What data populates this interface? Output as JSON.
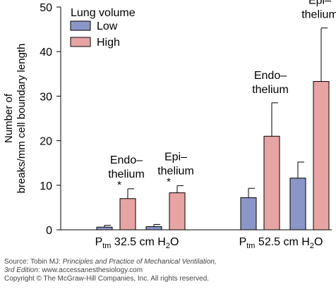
{
  "chart_data": {
    "type": "bar",
    "ylabel_line1": "Number of",
    "ylabel_line2": "breaks/mm cell boundary length",
    "ylim": [
      0,
      50
    ],
    "yticks": [
      0,
      10,
      20,
      30,
      40,
      50
    ],
    "grid": false,
    "legend": {
      "title": "Lung volume",
      "position": "top-left",
      "entries": [
        {
          "name": "Low",
          "color": "#8b96c8"
        },
        {
          "name": "High",
          "color": "#e8a3a3"
        }
      ]
    },
    "groups": [
      {
        "xlabel": {
          "p": "P",
          "sub": "tm",
          "value": "32.5 cm H",
          "sub2": "2",
          "end": "O"
        },
        "subgroups": [
          {
            "annotation": [
              "Endo–",
              "thelium"
            ],
            "star": "*",
            "low": 0.6,
            "low_err": 0.4,
            "high": 7.0,
            "high_err": 2.2
          },
          {
            "annotation": [
              "Epi–",
              "thelium"
            ],
            "star": "*",
            "low": 0.7,
            "low_err": 0.5,
            "high": 8.3,
            "high_err": 1.6
          }
        ]
      },
      {
        "xlabel": {
          "p": "P",
          "sub": "tm",
          "value": "52.5 cm H",
          "sub2": "2",
          "end": "O"
        },
        "subgroups": [
          {
            "annotation": [
              "Endo–",
              "thelium"
            ],
            "star": "",
            "low": 7.2,
            "low_err": 2.1,
            "high": 21.0,
            "high_err": 7.5
          },
          {
            "annotation": [
              "Epi–",
              "thelium"
            ],
            "star": "",
            "low": 11.6,
            "low_err": 3.6,
            "high": 33.3,
            "high_err": 12.0
          }
        ]
      }
    ]
  },
  "source": {
    "line1_prefix": "Source: Tobin MJ: ",
    "line1_title": "Principles and Practice of Mechanical Ventilation,",
    "line2_edition": "3rd Edition",
    "line2_rest": ": www.accessanesthesiology.com",
    "line3": "Copyright © The McGraw-Hill Companies, Inc. All rights reserved."
  }
}
